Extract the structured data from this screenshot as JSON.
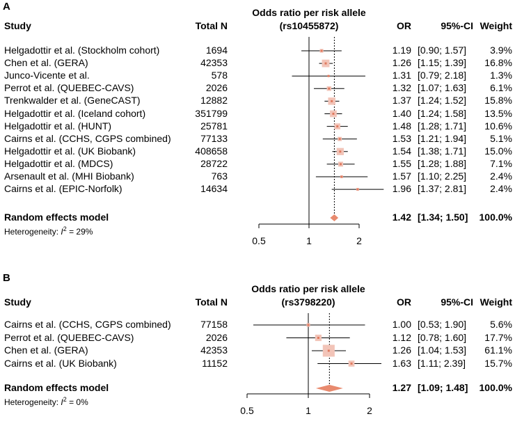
{
  "chart_data": [
    {
      "type": "forest",
      "panel": "A",
      "headers": {
        "study": "Study",
        "total_n": "Total N",
        "title_line1": "Odds ratio per risk allele",
        "title_line2": "(rs10455872)",
        "or": "OR",
        "ci": "95%-CI",
        "weight": "Weight"
      },
      "xscale": "log",
      "xlim": [
        0.5,
        2
      ],
      "xticks": [
        0.5,
        1,
        2
      ],
      "xtick_labels": [
        "0.5",
        "1",
        "2"
      ],
      "reference_line": 1,
      "summary_line": 1.42,
      "studies": [
        {
          "study": "Helgadottir et al. (Stockholm cohort)",
          "n": "1694",
          "or": 1.19,
          "lo": 0.9,
          "hi": 1.57,
          "or_text": "1.19",
          "ci_text": "[0.90; 1.57]",
          "weight": 3.9,
          "weight_text": "3.9%"
        },
        {
          "study": "Chen et al. (GERA)",
          "n": "42353",
          "or": 1.26,
          "lo": 1.15,
          "hi": 1.39,
          "or_text": "1.26",
          "ci_text": "[1.15; 1.39]",
          "weight": 16.8,
          "weight_text": "16.8%"
        },
        {
          "study": "Junco-Vicente et al.",
          "n": "578",
          "or": 1.31,
          "lo": 0.79,
          "hi": 2.18,
          "or_text": "1.31",
          "ci_text": "[0.79; 2.18]",
          "weight": 1.3,
          "weight_text": "1.3%"
        },
        {
          "study": "Perrot et al. (QUEBEC-CAVS)",
          "n": "2026",
          "or": 1.32,
          "lo": 1.07,
          "hi": 1.63,
          "or_text": "1.32",
          "ci_text": "[1.07; 1.63]",
          "weight": 6.1,
          "weight_text": "6.1%"
        },
        {
          "study": "Trenkwalder et al. (GeneCAST)",
          "n": "12882",
          "or": 1.37,
          "lo": 1.24,
          "hi": 1.52,
          "or_text": "1.37",
          "ci_text": "[1.24; 1.52]",
          "weight": 15.8,
          "weight_text": "15.8%"
        },
        {
          "study": "Helgadottir et al. (Iceland cohort)",
          "n": "351799",
          "or": 1.4,
          "lo": 1.24,
          "hi": 1.58,
          "or_text": "1.40",
          "ci_text": "[1.24; 1.58]",
          "weight": 13.5,
          "weight_text": "13.5%"
        },
        {
          "study": "Helgadottir et al. (HUNT)",
          "n": "25781",
          "or": 1.48,
          "lo": 1.28,
          "hi": 1.71,
          "or_text": "1.48",
          "ci_text": "[1.28; 1.71]",
          "weight": 10.6,
          "weight_text": "10.6%"
        },
        {
          "study": "Cairns et al. (CCHS, CGPS combined)",
          "n": "77133",
          "or": 1.53,
          "lo": 1.21,
          "hi": 1.94,
          "or_text": "1.53",
          "ci_text": "[1.21; 1.94]",
          "weight": 5.1,
          "weight_text": "5.1%"
        },
        {
          "study": "Helgadottir et al. (UK Biobank)",
          "n": "408658",
          "or": 1.54,
          "lo": 1.38,
          "hi": 1.71,
          "or_text": "1.54",
          "ci_text": "[1.38; 1.71]",
          "weight": 15.0,
          "weight_text": "15.0%"
        },
        {
          "study": "Helgadottir et al. (MDCS)",
          "n": "28722",
          "or": 1.55,
          "lo": 1.28,
          "hi": 1.88,
          "or_text": "1.55",
          "ci_text": "[1.28; 1.88]",
          "weight": 7.1,
          "weight_text": "7.1%"
        },
        {
          "study": "Arsenault et al. (MHI Biobank)",
          "n": "763",
          "or": 1.57,
          "lo": 1.1,
          "hi": 2.25,
          "or_text": "1.57",
          "ci_text": "[1.10; 2.25]",
          "weight": 2.4,
          "weight_text": "2.4%"
        },
        {
          "study": "Cairns et al. (EPIC-Norfolk)",
          "n": "14634",
          "or": 1.96,
          "lo": 1.37,
          "hi": 2.81,
          "or_text": "1.96",
          "ci_text": "[1.37; 2.81]",
          "weight": 2.4,
          "weight_text": "2.4%"
        }
      ],
      "summary": {
        "label": "Random effects model",
        "or": 1.42,
        "lo": 1.34,
        "hi": 1.5,
        "or_text": "1.42",
        "ci_text": "[1.34; 1.50]",
        "weight_text": "100.0%"
      },
      "heterogeneity": {
        "prefix": "Heterogeneity: ",
        "symbol": "I",
        "superscript": "2",
        "suffix": " = 29%"
      }
    },
    {
      "type": "forest",
      "panel": "B",
      "headers": {
        "study": "Study",
        "total_n": "Total N",
        "title_line1": "Odds ratio per risk allele",
        "title_line2": "(rs3798220)",
        "or": "OR",
        "ci": "95%-CI",
        "weight": "Weight"
      },
      "xscale": "log",
      "xlim": [
        0.5,
        2
      ],
      "xticks": [
        0.5,
        1,
        2
      ],
      "xtick_labels": [
        "0.5",
        "1",
        "2"
      ],
      "reference_line": 1,
      "summary_line": 1.27,
      "studies": [
        {
          "study": "Cairns et al. (CCHS, CGPS combined)",
          "n": "77158",
          "or": 1.0,
          "lo": 0.53,
          "hi": 1.9,
          "or_text": "1.00",
          "ci_text": "[0.53; 1.90]",
          "weight": 5.6,
          "weight_text": "5.6%"
        },
        {
          "study": "Perrot et al. (QUEBEC-CAVS)",
          "n": "2026",
          "or": 1.12,
          "lo": 0.78,
          "hi": 1.6,
          "or_text": "1.12",
          "ci_text": "[0.78; 1.60]",
          "weight": 17.7,
          "weight_text": "17.7%"
        },
        {
          "study": "Chen et al. (GERA)",
          "n": "42353",
          "or": 1.26,
          "lo": 1.04,
          "hi": 1.53,
          "or_text": "1.26",
          "ci_text": "[1.04; 1.53]",
          "weight": 61.1,
          "weight_text": "61.1%"
        },
        {
          "study": "Cairns et al. (UK Biobank)",
          "n": "11152",
          "or": 1.63,
          "lo": 1.11,
          "hi": 2.39,
          "or_text": "1.63",
          "ci_text": "[1.11; 2.39]",
          "weight": 15.7,
          "weight_text": "15.7%"
        }
      ],
      "summary": {
        "label": "Random effects model",
        "or": 1.27,
        "lo": 1.09,
        "hi": 1.48,
        "or_text": "1.27",
        "ci_text": "[1.09; 1.48]",
        "weight_text": "100.0%"
      },
      "heterogeneity": {
        "prefix": "Heterogeneity: ",
        "symbol": "I",
        "superscript": "2",
        "suffix": " = 0%"
      }
    }
  ],
  "colors": {
    "square": "#f2c4b8",
    "marker": "#e07a5f",
    "diamond": "#e88a6e",
    "line": "#000000"
  }
}
